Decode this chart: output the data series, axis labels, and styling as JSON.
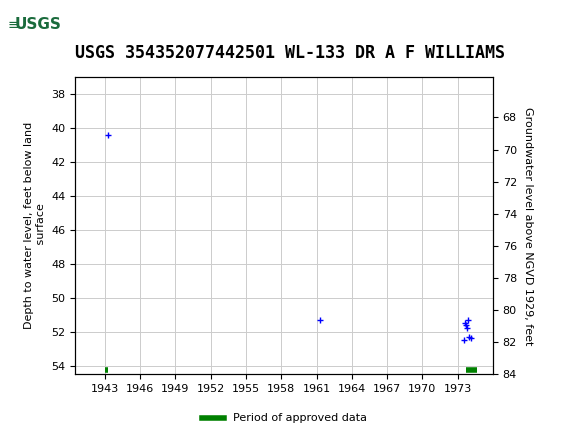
{
  "title": "USGS 354352077442501 WL-133 DR A F WILLIAMS",
  "header_bg_color": "#1a6b3c",
  "background_color": "#ffffff",
  "plot_bg_color": "#ffffff",
  "grid_color": "#cccccc",
  "left_ylabel": "Depth to water level, feet below land\n surface",
  "right_ylabel": "Groundwater level above NGVD 1929, feet",
  "left_ylim": [
    37,
    54.5
  ],
  "left_yticks": [
    38,
    40,
    42,
    44,
    46,
    48,
    50,
    52,
    54
  ],
  "right_ylim": [
    65.5,
    83
  ],
  "right_yticks": [
    68,
    70,
    72,
    74,
    76,
    78,
    80,
    82,
    84
  ],
  "xlim": [
    1940.5,
    1976
  ],
  "xticks": [
    1943,
    1946,
    1949,
    1952,
    1955,
    1958,
    1961,
    1964,
    1967,
    1970,
    1973
  ],
  "blue_points_x": [
    1943.3,
    1961.3,
    1973.5,
    1973.6,
    1973.7,
    1973.8,
    1973.9,
    1974.0,
    1974.1
  ],
  "blue_points_y": [
    40.4,
    51.3,
    52.5,
    51.5,
    51.6,
    51.8,
    51.3,
    52.3,
    52.4
  ],
  "green_segments": [
    {
      "x": [
        1943.05,
        1943.25
      ],
      "y": [
        54.25,
        54.25
      ]
    },
    {
      "x": [
        1973.7,
        1974.6
      ],
      "y": [
        54.25,
        54.25
      ]
    }
  ],
  "legend_label": "Period of approved data",
  "legend_color": "#008000",
  "title_fontsize": 12,
  "axis_fontsize": 8,
  "tick_fontsize": 8
}
